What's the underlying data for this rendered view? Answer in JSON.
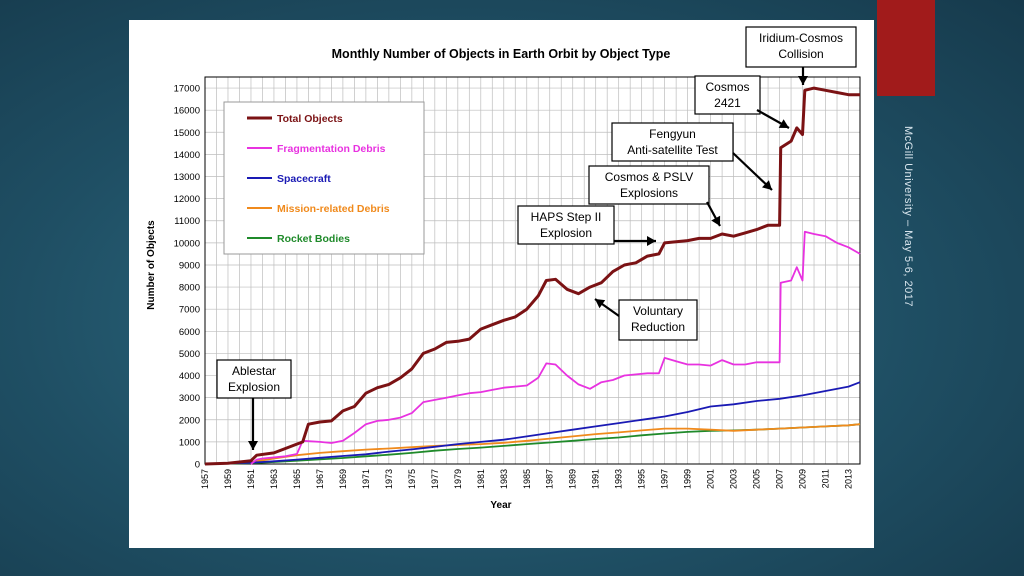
{
  "slide": {
    "side_text": "McGill University – May 5-6, 2017",
    "accent_color": "#a11b1b"
  },
  "chart_data": {
    "type": "line",
    "title": "Monthly Number of Objects in Earth Orbit by Object Type",
    "xlabel": "Year",
    "ylabel": "Number of Objects",
    "xlim": [
      1957,
      2014
    ],
    "ylim": [
      0,
      17500
    ],
    "x_ticks": [
      "1957",
      "1959",
      "1961",
      "1963",
      "1965",
      "1967",
      "1969",
      "1971",
      "1973",
      "1975",
      "1977",
      "1979",
      "1981",
      "1983",
      "1985",
      "1987",
      "1989",
      "1991",
      "1993",
      "1995",
      "1997",
      "1999",
      "2001",
      "2003",
      "2005",
      "2007",
      "2009",
      "2011",
      "2013"
    ],
    "y_ticks": [
      0,
      1000,
      2000,
      3000,
      4000,
      5000,
      6000,
      7000,
      8000,
      9000,
      10000,
      11000,
      12000,
      13000,
      14000,
      15000,
      16000,
      17000
    ],
    "grid": true,
    "legend_placement": "top-left",
    "series": [
      {
        "name": "Total Objects",
        "color": "#7b1214",
        "points": [
          [
            1957,
            0
          ],
          [
            1959,
            30
          ],
          [
            1961,
            150
          ],
          [
            1961.5,
            400
          ],
          [
            1963,
            500
          ],
          [
            1964,
            700
          ],
          [
            1965.5,
            1000
          ],
          [
            1966,
            1800
          ],
          [
            1967,
            1900
          ],
          [
            1968,
            1950
          ],
          [
            1969,
            2400
          ],
          [
            1970,
            2600
          ],
          [
            1971,
            3200
          ],
          [
            1972,
            3450
          ],
          [
            1973,
            3600
          ],
          [
            1974,
            3900
          ],
          [
            1975,
            4300
          ],
          [
            1976,
            5000
          ],
          [
            1977,
            5200
          ],
          [
            1978,
            5500
          ],
          [
            1979,
            5550
          ],
          [
            1980,
            5650
          ],
          [
            1981,
            6100
          ],
          [
            1982,
            6300
          ],
          [
            1983,
            6500
          ],
          [
            1984,
            6650
          ],
          [
            1985,
            7000
          ],
          [
            1986,
            7600
          ],
          [
            1986.7,
            8300
          ],
          [
            1987.5,
            8350
          ],
          [
            1988.5,
            7900
          ],
          [
            1989.5,
            7700
          ],
          [
            1990.5,
            8000
          ],
          [
            1991.5,
            8200
          ],
          [
            1992.5,
            8700
          ],
          [
            1993.5,
            9000
          ],
          [
            1994.5,
            9100
          ],
          [
            1995.5,
            9400
          ],
          [
            1996.5,
            9500
          ],
          [
            1997,
            10000
          ],
          [
            1999,
            10100
          ],
          [
            2000,
            10200
          ],
          [
            2001,
            10200
          ],
          [
            2002,
            10400
          ],
          [
            2003,
            10300
          ],
          [
            2004,
            10450
          ],
          [
            2005,
            10600
          ],
          [
            2006,
            10800
          ],
          [
            2007,
            10800
          ],
          [
            2007.1,
            14300
          ],
          [
            2008,
            14600
          ],
          [
            2008.5,
            15200
          ],
          [
            2009,
            14900
          ],
          [
            2009.2,
            16900
          ],
          [
            2010,
            17000
          ],
          [
            2011,
            16900
          ],
          [
            2012,
            16800
          ],
          [
            2013,
            16700
          ],
          [
            2014,
            16700
          ]
        ]
      },
      {
        "name": "Fragmentation Debris",
        "color": "#e832e0",
        "points": [
          [
            1961,
            0
          ],
          [
            1961.5,
            200
          ],
          [
            1962,
            250
          ],
          [
            1964,
            350
          ],
          [
            1965,
            450
          ],
          [
            1965.5,
            1050
          ],
          [
            1967,
            1000
          ],
          [
            1968,
            950
          ],
          [
            1969,
            1050
          ],
          [
            1970,
            1400
          ],
          [
            1971,
            1800
          ],
          [
            1972,
            1950
          ],
          [
            1973,
            2000
          ],
          [
            1974,
            2100
          ],
          [
            1975,
            2300
          ],
          [
            1976,
            2800
          ],
          [
            1977,
            2900
          ],
          [
            1978,
            3000
          ],
          [
            1979,
            3100
          ],
          [
            1980,
            3200
          ],
          [
            1981,
            3250
          ],
          [
            1982,
            3350
          ],
          [
            1983,
            3450
          ],
          [
            1984,
            3500
          ],
          [
            1985,
            3550
          ],
          [
            1986,
            3900
          ],
          [
            1986.7,
            4550
          ],
          [
            1987.5,
            4500
          ],
          [
            1988.5,
            4000
          ],
          [
            1989.5,
            3600
          ],
          [
            1990.5,
            3400
          ],
          [
            1991.5,
            3700
          ],
          [
            1992.5,
            3800
          ],
          [
            1993.5,
            4000
          ],
          [
            1994.5,
            4050
          ],
          [
            1995.5,
            4100
          ],
          [
            1996.5,
            4100
          ],
          [
            1997,
            4800
          ],
          [
            1998,
            4650
          ],
          [
            1999,
            4500
          ],
          [
            2000,
            4500
          ],
          [
            2001,
            4450
          ],
          [
            2002,
            4700
          ],
          [
            2003,
            4500
          ],
          [
            2004,
            4500
          ],
          [
            2005,
            4600
          ],
          [
            2006,
            4600
          ],
          [
            2007,
            4600
          ],
          [
            2007.1,
            8200
          ],
          [
            2008,
            8300
          ],
          [
            2008.5,
            8900
          ],
          [
            2009,
            8300
          ],
          [
            2009.2,
            10500
          ],
          [
            2010,
            10400
          ],
          [
            2011,
            10300
          ],
          [
            2012,
            10000
          ],
          [
            2013,
            9800
          ],
          [
            2014,
            9500
          ]
        ]
      },
      {
        "name": "Spacecraft",
        "color": "#1a1ab4",
        "points": [
          [
            1957,
            0
          ],
          [
            1961,
            60
          ],
          [
            1963,
            120
          ],
          [
            1965,
            200
          ],
          [
            1967,
            280
          ],
          [
            1969,
            360
          ],
          [
            1971,
            440
          ],
          [
            1973,
            560
          ],
          [
            1975,
            660
          ],
          [
            1977,
            780
          ],
          [
            1979,
            900
          ],
          [
            1981,
            1000
          ],
          [
            1983,
            1100
          ],
          [
            1985,
            1250
          ],
          [
            1987,
            1400
          ],
          [
            1989,
            1550
          ],
          [
            1991,
            1700
          ],
          [
            1993,
            1850
          ],
          [
            1995,
            2000
          ],
          [
            1997,
            2150
          ],
          [
            1999,
            2350
          ],
          [
            2001,
            2600
          ],
          [
            2003,
            2700
          ],
          [
            2005,
            2850
          ],
          [
            2007,
            2950
          ],
          [
            2009,
            3100
          ],
          [
            2011,
            3300
          ],
          [
            2013,
            3500
          ],
          [
            2014,
            3700
          ]
        ]
      },
      {
        "name": "Mission-related Debris",
        "color": "#f08a1c",
        "points": [
          [
            1957,
            0
          ],
          [
            1961,
            80
          ],
          [
            1963,
            250
          ],
          [
            1965,
            400
          ],
          [
            1967,
            500
          ],
          [
            1969,
            580
          ],
          [
            1971,
            650
          ],
          [
            1973,
            700
          ],
          [
            1975,
            760
          ],
          [
            1977,
            820
          ],
          [
            1979,
            860
          ],
          [
            1981,
            900
          ],
          [
            1983,
            960
          ],
          [
            1985,
            1050
          ],
          [
            1987,
            1150
          ],
          [
            1989,
            1250
          ],
          [
            1991,
            1350
          ],
          [
            1993,
            1430
          ],
          [
            1995,
            1520
          ],
          [
            1997,
            1600
          ],
          [
            1999,
            1600
          ],
          [
            2001,
            1550
          ],
          [
            2003,
            1500
          ],
          [
            2005,
            1550
          ],
          [
            2007,
            1600
          ],
          [
            2009,
            1650
          ],
          [
            2011,
            1700
          ],
          [
            2013,
            1750
          ],
          [
            2014,
            1800
          ]
        ]
      },
      {
        "name": "Rocket Bodies",
        "color": "#1f8a2a",
        "points": [
          [
            1957,
            0
          ],
          [
            1961,
            40
          ],
          [
            1963,
            90
          ],
          [
            1965,
            150
          ],
          [
            1967,
            210
          ],
          [
            1969,
            270
          ],
          [
            1971,
            350
          ],
          [
            1973,
            420
          ],
          [
            1975,
            500
          ],
          [
            1977,
            600
          ],
          [
            1979,
            680
          ],
          [
            1981,
            740
          ],
          [
            1983,
            820
          ],
          [
            1985,
            900
          ],
          [
            1987,
            970
          ],
          [
            1989,
            1050
          ],
          [
            1991,
            1130
          ],
          [
            1993,
            1200
          ],
          [
            1995,
            1300
          ],
          [
            1997,
            1380
          ],
          [
            1999,
            1450
          ],
          [
            2001,
            1500
          ],
          [
            2003,
            1520
          ],
          [
            2005,
            1550
          ],
          [
            2007,
            1600
          ],
          [
            2009,
            1650
          ],
          [
            2011,
            1700
          ],
          [
            2013,
            1750
          ],
          [
            2014,
            1800
          ]
        ]
      }
    ],
    "annotations": [
      {
        "id": "ablestar",
        "lines": [
          "Ablestar",
          "Explosion"
        ],
        "x": 1961.3,
        "y": 500
      },
      {
        "id": "voluntary",
        "lines": [
          "Voluntary",
          "Reduction"
        ],
        "x": 1990,
        "y": 7700
      },
      {
        "id": "haps",
        "lines": [
          "HAPS Step II",
          "Explosion"
        ],
        "x": 1996.5,
        "y": 10000
      },
      {
        "id": "cosmos-pslv",
        "lines": [
          "Cosmos & PSLV",
          "Explosions"
        ],
        "x": 2002.3,
        "y": 10400
      },
      {
        "id": "fengyun",
        "lines": [
          "Fengyun",
          "Anti-satellite Test"
        ],
        "x": 2006.8,
        "y": 12500
      },
      {
        "id": "cosmos2421",
        "lines": [
          "Cosmos",
          "2421"
        ],
        "x": 2008.3,
        "y": 15400
      },
      {
        "id": "iridium",
        "lines": [
          "Iridium-Cosmos",
          "Collision"
        ],
        "x": 2009.3,
        "y": 17400
      }
    ]
  }
}
